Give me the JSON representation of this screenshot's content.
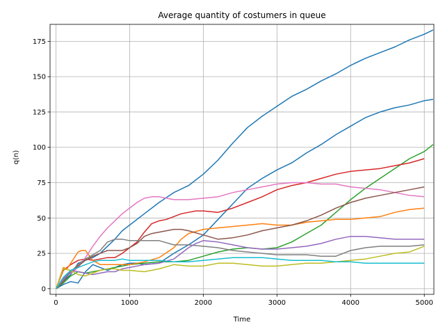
{
  "chart_data": {
    "type": "line",
    "title": "Average quantity of costumers in queue",
    "xlabel": "Time",
    "ylabel": "q(n)",
    "xlim": [
      -80,
      5130
    ],
    "ylim": [
      -4,
      187
    ],
    "xticks": [
      0,
      1000,
      2000,
      3000,
      4000,
      5000
    ],
    "yticks": [
      0,
      25,
      50,
      75,
      100,
      125,
      150,
      175
    ],
    "grid": true,
    "series": [
      {
        "color": "#1f77b4",
        "x": [
          0,
          100,
          200,
          300,
          400,
          500,
          600,
          700,
          800,
          900,
          1000,
          1200,
          1400,
          1600,
          1800,
          2000,
          2200,
          2400,
          2600,
          2800,
          3000,
          3200,
          3400,
          3600,
          3800,
          4000,
          4200,
          4400,
          4600,
          4800,
          5000,
          5120
        ],
        "y": [
          0,
          5,
          10,
          18,
          20,
          22,
          25,
          30,
          35,
          41,
          45,
          53,
          61,
          68,
          73,
          81,
          91,
          103,
          114,
          122,
          129,
          136,
          141,
          147,
          152,
          158,
          163,
          167,
          171,
          176,
          180,
          183
        ]
      },
      {
        "color": "#1f77b4",
        "x": [
          0,
          100,
          200,
          300,
          400,
          500,
          600,
          700,
          800,
          900,
          1000,
          1100,
          1200,
          1400,
          1600,
          1800,
          2000,
          2200,
          2400,
          2600,
          2800,
          3000,
          3200,
          3400,
          3600,
          3800,
          4000,
          4200,
          4400,
          4600,
          4800,
          5000,
          5120
        ],
        "y": [
          0,
          3,
          5,
          4,
          12,
          17,
          15,
          13,
          15,
          17,
          18,
          18,
          17,
          18,
          25,
          31,
          38,
          49,
          60,
          71,
          78,
          84,
          89,
          96,
          102,
          109,
          115,
          121,
          125,
          128,
          130,
          133,
          134
        ]
      },
      {
        "color": "#2ca02c",
        "x": [
          0,
          100,
          200,
          300,
          400,
          500,
          600,
          700,
          800,
          900,
          1000,
          1200,
          1400,
          1600,
          1800,
          2000,
          2200,
          2400,
          2600,
          2800,
          3000,
          3200,
          3400,
          3600,
          3800,
          4000,
          4200,
          4400,
          4600,
          4800,
          5000,
          5120
        ],
        "y": [
          0,
          4,
          9,
          12,
          11,
          12,
          13,
          14,
          15,
          16,
          17,
          18,
          19,
          19,
          20,
          23,
          26,
          28,
          29,
          28,
          29,
          33,
          39,
          45,
          54,
          63,
          71,
          78,
          85,
          92,
          97,
          102
        ]
      },
      {
        "color": "#d62728",
        "x": [
          0,
          100,
          200,
          300,
          400,
          500,
          600,
          700,
          800,
          900,
          1000,
          1100,
          1200,
          1300,
          1400,
          1500,
          1600,
          1700,
          1800,
          1900,
          2000,
          2200,
          2400,
          2600,
          2800,
          3000,
          3200,
          3400,
          3600,
          3800,
          4000,
          4200,
          4400,
          4600,
          4800,
          5000
        ],
        "y": [
          0,
          13,
          17,
          20,
          21,
          20,
          21,
          22,
          22,
          25,
          29,
          33,
          40,
          46,
          48,
          49,
          51,
          53,
          54,
          55,
          55,
          54,
          57,
          61,
          65,
          70,
          73,
          75,
          78,
          81,
          83,
          84,
          85,
          87,
          89,
          92
        ]
      },
      {
        "color": "#ff7f0e",
        "x": [
          0,
          100,
          150,
          200,
          300,
          350,
          400,
          500,
          600,
          800,
          1000,
          1200,
          1400,
          1600,
          1700,
          1800,
          2000,
          2200,
          2400,
          2600,
          2800,
          3000,
          3200,
          3400,
          3600,
          3800,
          4000,
          4200,
          4400,
          4600,
          4800,
          5000
        ],
        "y": [
          0,
          15,
          14,
          18,
          26,
          27,
          27,
          20,
          17,
          17,
          17,
          19,
          22,
          29,
          35,
          39,
          42,
          43,
          44,
          45,
          46,
          45,
          45,
          47,
          48,
          49,
          49,
          50,
          51,
          54,
          56,
          57
        ]
      },
      {
        "color": "#e377c2",
        "x": [
          0,
          100,
          200,
          300,
          400,
          500,
          600,
          700,
          800,
          900,
          1000,
          1100,
          1200,
          1300,
          1400,
          1500,
          1600,
          1800,
          2000,
          2200,
          2400,
          2600,
          2800,
          3000,
          3200,
          3400,
          3600,
          3800,
          4000,
          4200,
          4400,
          4600,
          4800,
          5000
        ],
        "y": [
          0,
          8,
          11,
          15,
          22,
          30,
          37,
          43,
          48,
          53,
          57,
          61,
          64,
          65,
          65,
          64,
          63,
          63,
          64,
          65,
          68,
          70,
          72,
          74,
          75,
          75,
          74,
          74,
          72,
          71,
          70,
          68,
          66,
          65
        ]
      },
      {
        "color": "#8c564b",
        "x": [
          0,
          100,
          200,
          300,
          400,
          500,
          600,
          700,
          800,
          900,
          1000,
          1100,
          1200,
          1300,
          1400,
          1500,
          1600,
          1700,
          1800,
          2000,
          2200,
          2400,
          2600,
          2800,
          3000,
          3200,
          3400,
          3600,
          3800,
          4000,
          4200,
          4400,
          4600,
          4800,
          5000
        ],
        "y": [
          0,
          5,
          12,
          16,
          20,
          23,
          25,
          27,
          27,
          27,
          29,
          32,
          37,
          39,
          40,
          41,
          42,
          42,
          41,
          38,
          35,
          36,
          38,
          41,
          43,
          45,
          48,
          52,
          57,
          61,
          64,
          66,
          68,
          70,
          72
        ]
      },
      {
        "color": "#7f7f7f",
        "x": [
          0,
          100,
          200,
          300,
          400,
          500,
          600,
          700,
          800,
          900,
          1000,
          1200,
          1400,
          1600,
          1800,
          2000,
          2200,
          2400,
          2600,
          2800,
          3000,
          3200,
          3400,
          3600,
          3800,
          4000,
          4200,
          4400,
          4600,
          4800,
          5000
        ],
        "y": [
          0,
          6,
          12,
          17,
          21,
          24,
          27,
          33,
          35,
          35,
          34,
          34,
          34,
          31,
          31,
          30,
          29,
          27,
          26,
          25,
          24,
          24,
          24,
          23,
          23,
          27,
          29,
          30,
          30,
          30,
          31
        ]
      },
      {
        "color": "#9467bd",
        "x": [
          0,
          100,
          200,
          300,
          400,
          500,
          600,
          700,
          800,
          900,
          1000,
          1200,
          1400,
          1600,
          1800,
          1900,
          2000,
          2200,
          2400,
          2600,
          2800,
          3000,
          3200,
          3400,
          3600,
          3800,
          4000,
          4200,
          4400,
          4600,
          4800,
          5000
        ],
        "y": [
          0,
          7,
          13,
          12,
          11,
          10,
          11,
          12,
          12,
          14,
          15,
          17,
          18,
          21,
          29,
          32,
          34,
          33,
          31,
          29,
          28,
          28,
          29,
          30,
          32,
          35,
          37,
          37,
          36,
          35,
          35,
          35
        ]
      },
      {
        "color": "#bcbd22",
        "x": [
          0,
          100,
          200,
          300,
          400,
          500,
          600,
          700,
          800,
          900,
          1000,
          1200,
          1400,
          1600,
          1800,
          2000,
          2200,
          2400,
          2600,
          2800,
          3000,
          3200,
          3400,
          3600,
          3800,
          4000,
          4200,
          4400,
          4600,
          4800,
          5000
        ],
        "y": [
          0,
          14,
          13,
          10,
          9,
          11,
          13,
          14,
          14,
          13,
          13,
          12,
          14,
          17,
          16,
          16,
          18,
          18,
          17,
          16,
          16,
          17,
          18,
          18,
          19,
          20,
          21,
          23,
          25,
          26,
          30
        ]
      },
      {
        "color": "#17becf",
        "x": [
          0,
          100,
          200,
          300,
          400,
          500,
          600,
          700,
          800,
          900,
          1000,
          1200,
          1400,
          1600,
          1800,
          2000,
          2200,
          2400,
          2600,
          2800,
          3000,
          3200,
          3400,
          3600,
          3800,
          4000,
          4200,
          4400,
          4600,
          4800,
          5000
        ],
        "y": [
          0,
          8,
          13,
          15,
          17,
          19,
          20,
          20,
          20,
          21,
          20,
          20,
          20,
          19,
          19,
          20,
          21,
          22,
          22,
          22,
          21,
          20,
          20,
          20,
          19,
          19,
          18,
          18,
          18,
          18,
          18
        ]
      }
    ]
  }
}
